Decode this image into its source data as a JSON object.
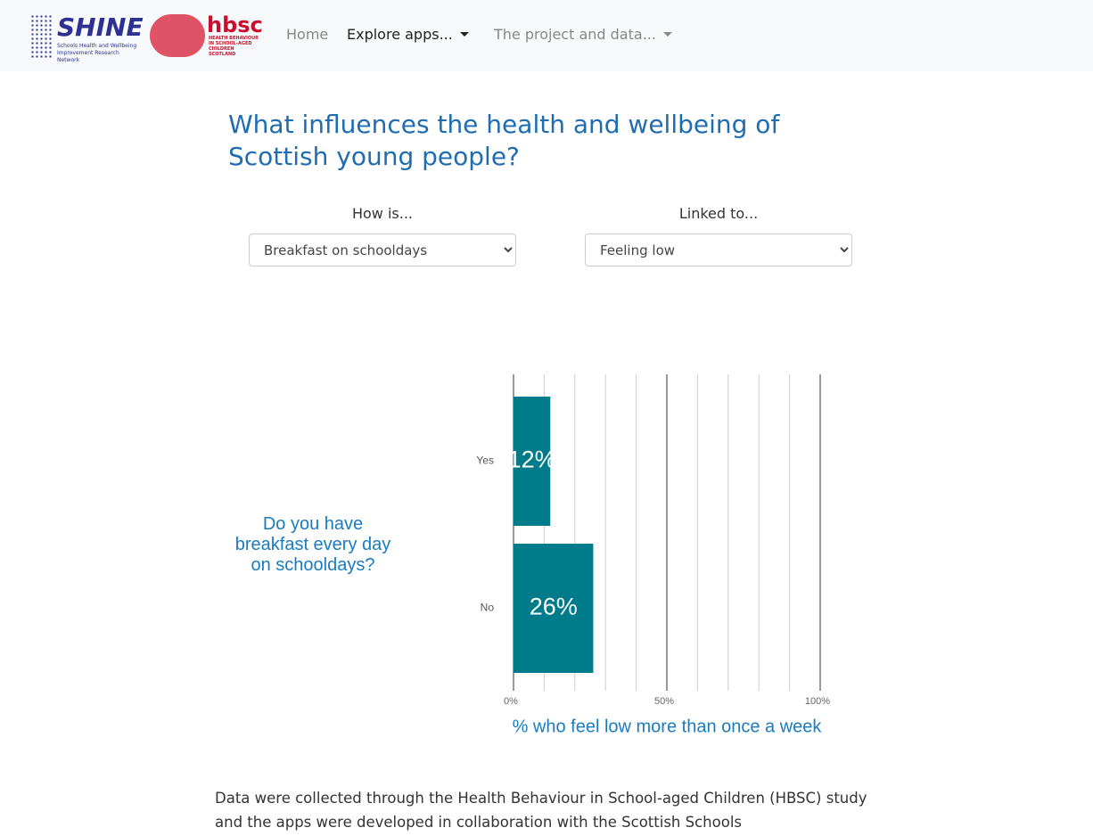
{
  "nav": {
    "logo_shine": "SHINE",
    "logo_shine_sub": "Schools Health and Wellbeing Improvement Research Network",
    "logo_hbsc": "hbsc",
    "logo_hbsc_sub": "HEALTH BEHAVIOUR IN SCHOOL-AGED CHILDREN SCOTLAND",
    "links": [
      "Home",
      "Explore apps...",
      "The project and data..."
    ]
  },
  "header": {
    "title": "What influences the health and wellbeing of Scottish young people?"
  },
  "controls": [
    {
      "label": "How is...",
      "selected": "Breakfast on schooldays"
    },
    {
      "label": "Linked to...",
      "selected": "Feeling low"
    }
  ],
  "chart_data": {
    "type": "hbar",
    "categories": [
      "Yes",
      "No"
    ],
    "values": [
      12,
      26
    ],
    "value_labels": [
      "12%",
      "26%"
    ],
    "color": "#007b8a",
    "y_label": "Do you have breakfast every day on schooldays?",
    "x_label": "% who feel low more than once a week",
    "xlim": [
      0,
      100
    ],
    "xticks": [
      {
        "value": 0,
        "label": "0%"
      },
      {
        "value": 50,
        "label": "50%"
      },
      {
        "value": 100,
        "label": "100%"
      }
    ],
    "minor_gridlines": [
      10,
      20,
      30,
      40,
      60,
      70,
      80,
      90
    ],
    "grid": true
  },
  "footer": {
    "text": "Data were collected through the Health Behaviour in School-aged Children (HBSC) study and the apps were developed in collaboration with the Scottish Schools"
  }
}
